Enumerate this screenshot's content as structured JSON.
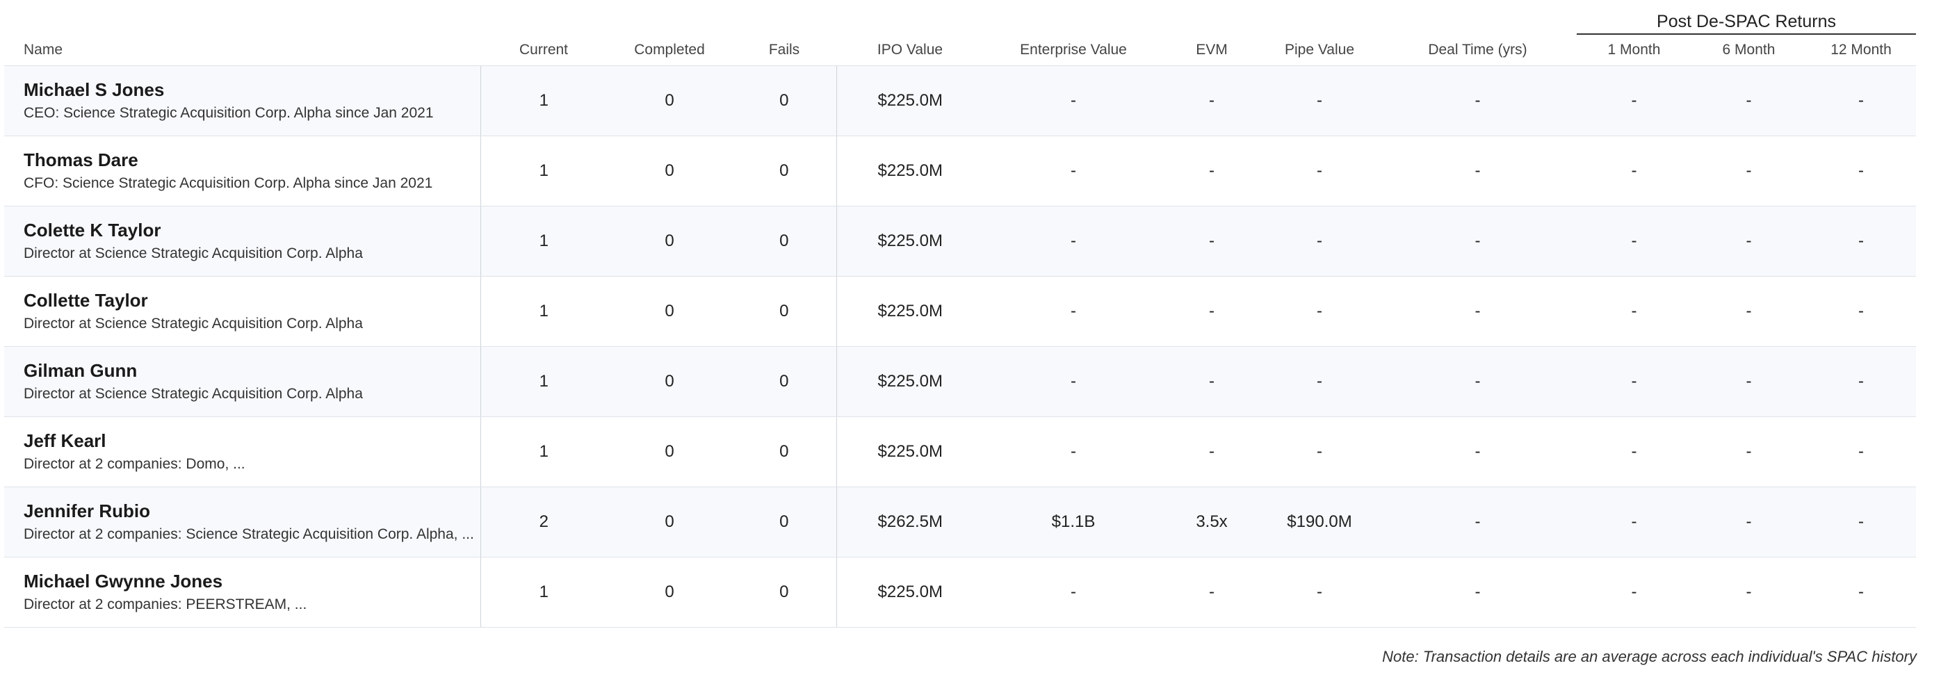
{
  "table": {
    "group_header": "Post De-SPAC Returns",
    "columns": [
      "Name",
      "Current",
      "Completed",
      "Fails",
      "IPO Value",
      "Enterprise Value",
      "EVM",
      "Pipe Value",
      "Deal Time (yrs)",
      "1 Month",
      "6 Month",
      "12 Month"
    ],
    "rows": [
      {
        "name": "Michael S Jones",
        "role": "CEO: Science Strategic Acquisition Corp. Alpha since Jan 2021",
        "current": "1",
        "completed": "0",
        "fails": "0",
        "ipo_value": "$225.0M",
        "enterprise_value": "-",
        "evm": "-",
        "pipe_value": "-",
        "deal_time": "-",
        "m1": "-",
        "m6": "-",
        "m12": "-"
      },
      {
        "name": "Thomas Dare",
        "role": "CFO: Science Strategic Acquisition Corp. Alpha since Jan 2021",
        "current": "1",
        "completed": "0",
        "fails": "0",
        "ipo_value": "$225.0M",
        "enterprise_value": "-",
        "evm": "-",
        "pipe_value": "-",
        "deal_time": "-",
        "m1": "-",
        "m6": "-",
        "m12": "-"
      },
      {
        "name": "Colette K Taylor",
        "role": "Director at Science Strategic Acquisition Corp. Alpha",
        "current": "1",
        "completed": "0",
        "fails": "0",
        "ipo_value": "$225.0M",
        "enterprise_value": "-",
        "evm": "-",
        "pipe_value": "-",
        "deal_time": "-",
        "m1": "-",
        "m6": "-",
        "m12": "-"
      },
      {
        "name": "Collette Taylor",
        "role": "Director at Science Strategic Acquisition Corp. Alpha",
        "current": "1",
        "completed": "0",
        "fails": "0",
        "ipo_value": "$225.0M",
        "enterprise_value": "-",
        "evm": "-",
        "pipe_value": "-",
        "deal_time": "-",
        "m1": "-",
        "m6": "-",
        "m12": "-"
      },
      {
        "name": "Gilman Gunn",
        "role": "Director at Science Strategic Acquisition Corp. Alpha",
        "current": "1",
        "completed": "0",
        "fails": "0",
        "ipo_value": "$225.0M",
        "enterprise_value": "-",
        "evm": "-",
        "pipe_value": "-",
        "deal_time": "-",
        "m1": "-",
        "m6": "-",
        "m12": "-"
      },
      {
        "name": "Jeff Kearl",
        "role": "Director at 2 companies: Domo, ...",
        "current": "1",
        "completed": "0",
        "fails": "0",
        "ipo_value": "$225.0M",
        "enterprise_value": "-",
        "evm": "-",
        "pipe_value": "-",
        "deal_time": "-",
        "m1": "-",
        "m6": "-",
        "m12": "-"
      },
      {
        "name": "Jennifer Rubio",
        "role": "Director at 2 companies: Science Strategic Acquisition Corp. Alpha, ...",
        "current": "2",
        "completed": "0",
        "fails": "0",
        "ipo_value": "$262.5M",
        "enterprise_value": "$1.1B",
        "evm": "3.5x",
        "pipe_value": "$190.0M",
        "deal_time": "-",
        "m1": "-",
        "m6": "-",
        "m12": "-"
      },
      {
        "name": "Michael Gwynne Jones",
        "role": "Director at 2 companies: PEERSTREAM, ...",
        "current": "1",
        "completed": "0",
        "fails": "0",
        "ipo_value": "$225.0M",
        "enterprise_value": "-",
        "evm": "-",
        "pipe_value": "-",
        "deal_time": "-",
        "m1": "-",
        "m6": "-",
        "m12": "-"
      }
    ]
  },
  "note": "Note: Transaction details are an average across each individual's SPAC history"
}
